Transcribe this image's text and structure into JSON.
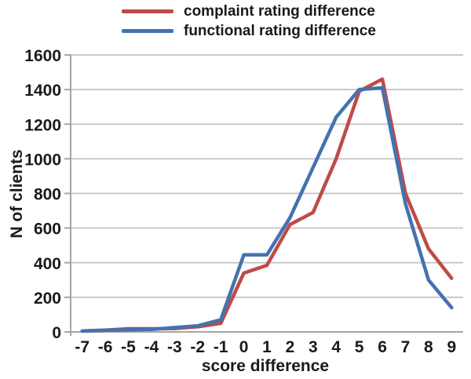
{
  "chart_data": {
    "type": "line",
    "title": "",
    "xlabel": "score difference",
    "ylabel": "N of clients",
    "categories": [
      -7,
      -6,
      -5,
      -4,
      -3,
      -2,
      -1,
      0,
      1,
      2,
      3,
      4,
      5,
      6,
      7,
      8,
      9
    ],
    "ylim": [
      0,
      1600
    ],
    "yticks": [
      0,
      200,
      400,
      600,
      800,
      1000,
      1200,
      1400,
      1600
    ],
    "grid": true,
    "legend_position": "top",
    "series": [
      {
        "name": "complaint rating difference",
        "color": "#be4b48",
        "values": [
          5,
          10,
          18,
          18,
          20,
          30,
          50,
          340,
          385,
          620,
          690,
          1000,
          1390,
          1460,
          800,
          480,
          310
        ]
      },
      {
        "name": "functional rating difference",
        "color": "#4472b0",
        "values": [
          5,
          10,
          12,
          15,
          25,
          35,
          70,
          445,
          445,
          660,
          950,
          1240,
          1400,
          1410,
          740,
          300,
          140
        ]
      }
    ]
  }
}
